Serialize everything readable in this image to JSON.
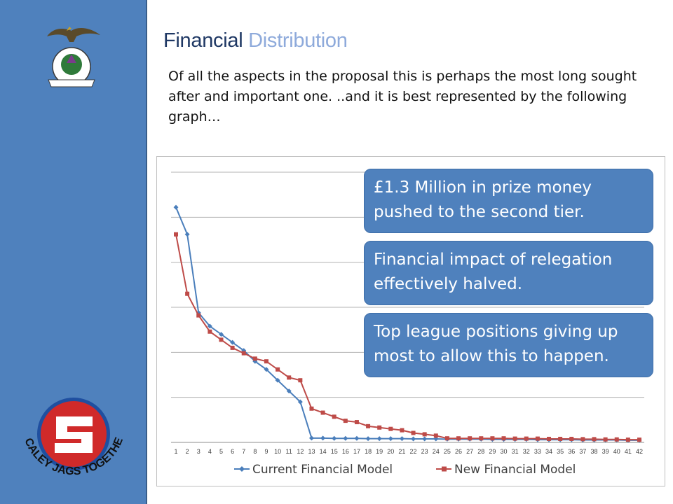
{
  "slide": {
    "title_part1": "Financial",
    "title_part2": "Distribution",
    "intro": "Of all the aspects in the proposal this is perhaps the most long sought after and important one. ..and it is best represented by the following graph…"
  },
  "logo": {
    "text_lines": [
      "CALEY",
      "JAGS TOGETHER"
    ]
  },
  "callouts": [
    "£1.3 Million in prize money pushed to the second tier.",
    "Financial impact of relegation effectively halved.",
    "Top league positions giving up most to allow this to happen."
  ],
  "colors": {
    "sidebar": "#4f81bd",
    "title_dark": "#1f3864",
    "title_light": "#8eaadb",
    "series_current": "#4a7ebb",
    "series_new": "#be4b48"
  },
  "chart_data": {
    "type": "line",
    "title": "",
    "xlabel": "",
    "ylabel": "",
    "ylim": [
      0,
      100
    ],
    "grid": true,
    "legend": "bottom",
    "x": [
      1,
      2,
      3,
      4,
      5,
      6,
      7,
      8,
      9,
      10,
      11,
      12,
      13,
      14,
      15,
      16,
      17,
      18,
      19,
      20,
      21,
      22,
      23,
      24,
      25,
      26,
      27,
      28,
      29,
      30,
      31,
      32,
      33,
      34,
      35,
      36,
      37,
      38,
      39,
      40,
      41,
      42
    ],
    "series": [
      {
        "name": "Current Financial Model",
        "marker": "diamond",
        "values": [
          87,
          77,
          48,
          43,
          40,
          37,
          34,
          30,
          27,
          23,
          19,
          15,
          1.6,
          1.6,
          1.5,
          1.5,
          1.5,
          1.4,
          1.4,
          1.4,
          1.4,
          1.3,
          1.3,
          1.3,
          1.2,
          1.2,
          1.2,
          1.2,
          1.1,
          1.1,
          1.1,
          1.1,
          1.0,
          1.0,
          1.0,
          1.0,
          0.9,
          0.9,
          0.9,
          0.9,
          0.8,
          0.8
        ]
      },
      {
        "name": "New Financial Model",
        "marker": "square",
        "values": [
          77,
          55,
          47,
          41,
          38,
          35,
          33,
          31,
          30,
          27,
          24,
          23,
          12.5,
          11,
          9.5,
          8,
          7.5,
          6,
          5.5,
          5,
          4.5,
          3.5,
          3,
          2.5,
          1.5,
          1.5,
          1.5,
          1.5,
          1.5,
          1.5,
          1.4,
          1.4,
          1.4,
          1.3,
          1.3,
          1.3,
          1.2,
          1.2,
          1.1,
          1.1,
          1.0,
          1.0
        ]
      }
    ]
  }
}
